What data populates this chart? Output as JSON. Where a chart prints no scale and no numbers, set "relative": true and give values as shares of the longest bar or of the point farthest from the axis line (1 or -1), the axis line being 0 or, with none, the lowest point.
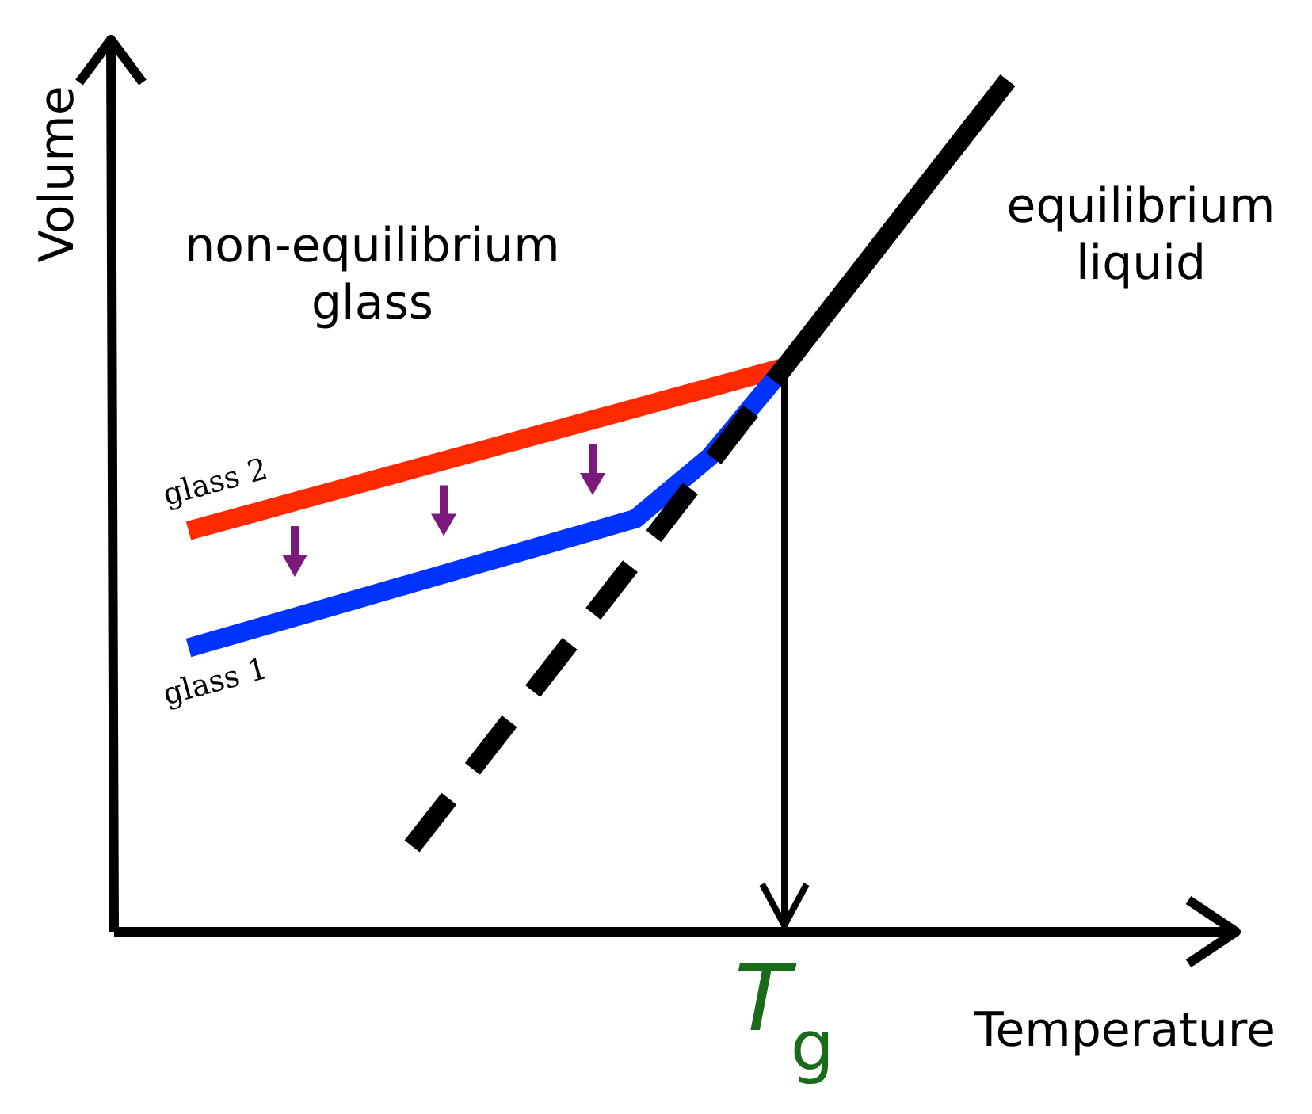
{
  "chart_data": {
    "type": "line",
    "relative": true,
    "xlabel": "Temperature",
    "ylabel": "Volume",
    "categories": [
      null,
      null,
      null,
      null,
      null,
      null,
      null,
      null,
      null,
      null,
      null,
      null,
      null,
      null,
      null,
      null
    ],
    "series": [
      {
        "color": "#000000",
        "line_style": "dashed",
        "values": [
          null,
          null,
          null,
          null,
          0.1005,
          0.2125,
          0.325,
          0.437,
          0.55,
          0.663,
          null,
          null,
          null,
          null,
          null,
          null
        ]
      },
      {
        "color": "#000000",
        "line_style": "solid",
        "values": [
          null,
          null,
          null,
          null,
          null,
          null,
          null,
          null,
          null,
          0.663,
          0.775,
          0.888,
          1,
          null,
          null,
          null
        ]
      },
      {
        "name": "glass 2",
        "color": "#ff2a00",
        "line_style": "solid",
        "values": [
          null,
          0.471,
          0.495,
          0.519,
          0.543,
          0.567,
          0.591,
          0.615,
          0.639,
          0.663,
          null,
          null,
          null,
          null,
          null,
          null
        ]
      },
      {
        "name": "glass 1",
        "color": "#0033ff",
        "line_style": "solid",
        "values": [
          null,
          0.3335,
          0.3588,
          0.384,
          0.4093,
          0.4345,
          0.4598,
          0.485,
          0.558,
          0.663,
          null,
          null,
          null,
          null,
          null,
          null
        ]
      }
    ],
    "annotations": [
      "non-equilibrium\nglass",
      "equilibrium\nliquid",
      "T$_{g}$"
    ]
  }
}
